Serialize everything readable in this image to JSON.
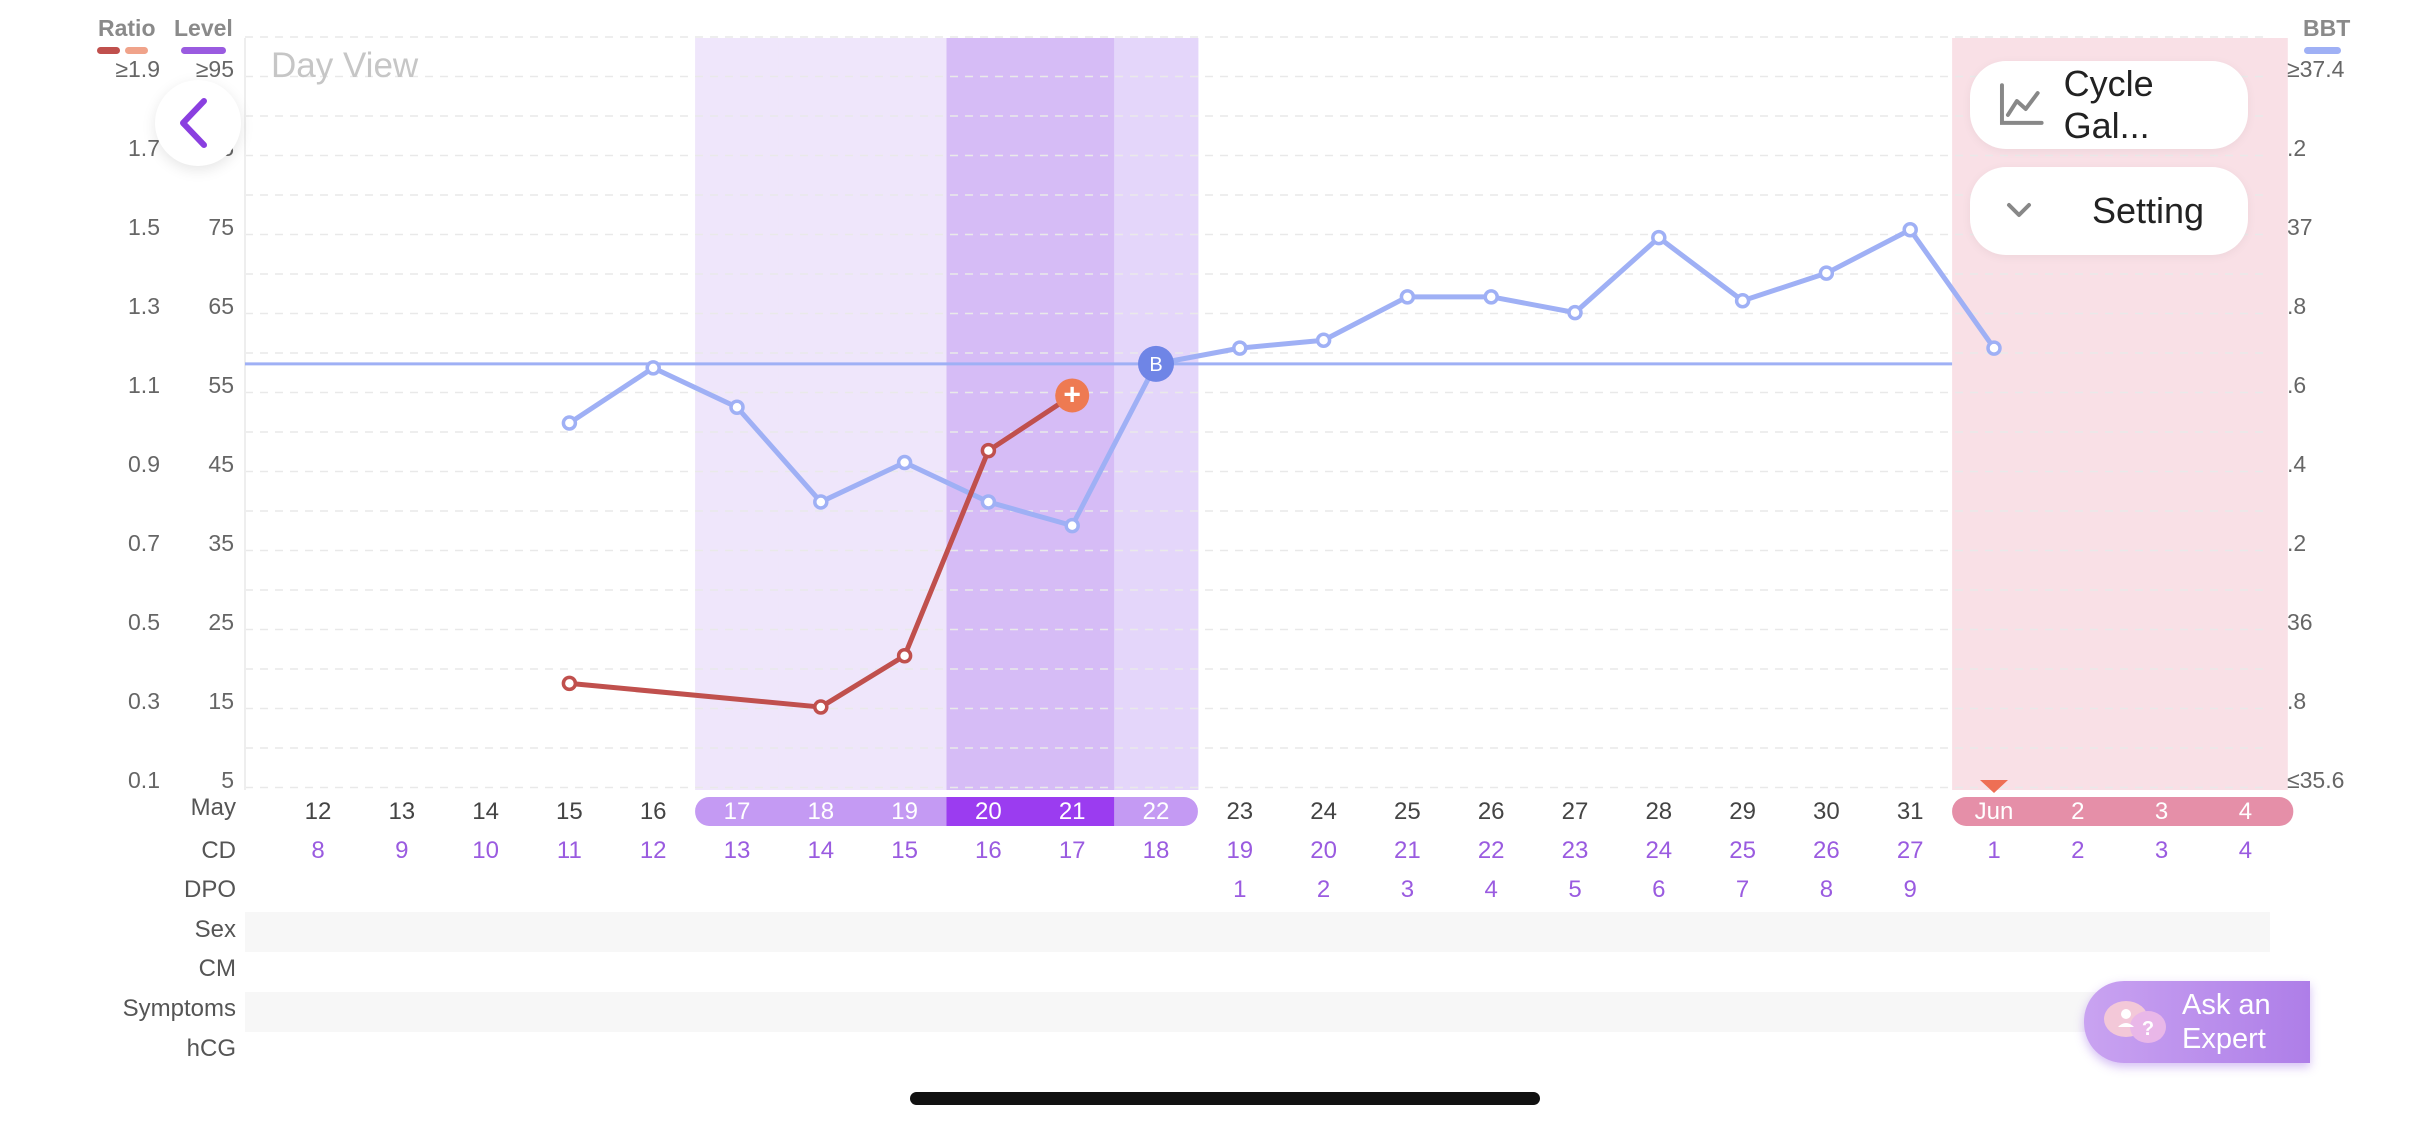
{
  "header": {
    "title": "Day View",
    "legend_left": [
      {
        "label": "Ratio",
        "colors": [
          "#c0504d",
          "#f0a38a"
        ]
      },
      {
        "label": "Level",
        "colors": [
          "#9a5be0"
        ]
      }
    ],
    "legend_right": {
      "label": "BBT",
      "color": "#9fb0f5"
    }
  },
  "buttons": {
    "cycle_gallery": "Cycle Gal...",
    "setting": "Setting",
    "ask_expert_line1": "Ask an",
    "ask_expert_line2": "Expert"
  },
  "axes": {
    "ratio": [
      "≥1.9",
      "1.7",
      "1.5",
      "1.3",
      "1.1",
      "0.9",
      "0.7",
      "0.5",
      "0.3",
      "0.1"
    ],
    "level": [
      "≥95",
      "85",
      "75",
      "65",
      "55",
      "45",
      "35",
      "25",
      "15",
      "5"
    ],
    "bbt": [
      "≥37.4",
      ".2",
      "37",
      ".8",
      ".6",
      ".4",
      ".2",
      "36",
      ".8",
      "≤35.6"
    ]
  },
  "rows": {
    "month_label": "May",
    "cd_label": "CD",
    "dpo_label": "DPO",
    "sex_label": "Sex",
    "cm_label": "CM",
    "symptoms_label": "Symptoms",
    "hcg_label": "hCG"
  },
  "days": [
    {
      "date": "12",
      "cd": "8",
      "dpo": ""
    },
    {
      "date": "13",
      "cd": "9",
      "dpo": ""
    },
    {
      "date": "14",
      "cd": "10",
      "dpo": ""
    },
    {
      "date": "15",
      "cd": "11",
      "dpo": ""
    },
    {
      "date": "16",
      "cd": "12",
      "dpo": ""
    },
    {
      "date": "17",
      "cd": "13",
      "dpo": "",
      "fertile": "light"
    },
    {
      "date": "18",
      "cd": "14",
      "dpo": "",
      "fertile": "light"
    },
    {
      "date": "19",
      "cd": "15",
      "dpo": "",
      "fertile": "light"
    },
    {
      "date": "20",
      "cd": "16",
      "dpo": "",
      "fertile": "peak"
    },
    {
      "date": "21",
      "cd": "17",
      "dpo": "",
      "fertile": "peak"
    },
    {
      "date": "22",
      "cd": "18",
      "dpo": "",
      "fertile": "light"
    },
    {
      "date": "23",
      "cd": "19",
      "dpo": "1"
    },
    {
      "date": "24",
      "cd": "20",
      "dpo": "2"
    },
    {
      "date": "25",
      "cd": "21",
      "dpo": "3"
    },
    {
      "date": "26",
      "cd": "22",
      "dpo": "4"
    },
    {
      "date": "27",
      "cd": "23",
      "dpo": "5"
    },
    {
      "date": "28",
      "cd": "24",
      "dpo": "6"
    },
    {
      "date": "29",
      "cd": "25",
      "dpo": "7"
    },
    {
      "date": "30",
      "cd": "26",
      "dpo": "8"
    },
    {
      "date": "31",
      "cd": "27",
      "dpo": "9"
    },
    {
      "date": "Jun",
      "cd": "1",
      "dpo": "",
      "period": true
    },
    {
      "date": "2",
      "cd": "2",
      "dpo": "",
      "period": true
    },
    {
      "date": "3",
      "cd": "3",
      "dpo": "",
      "period": true
    },
    {
      "date": "4",
      "cd": "4",
      "dpo": "",
      "period": true
    }
  ],
  "chart_data": {
    "type": "line",
    "x": [
      "May 12",
      "May 13",
      "May 14",
      "May 15",
      "May 16",
      "May 17",
      "May 18",
      "May 19",
      "May 20",
      "May 21",
      "May 22",
      "May 23",
      "May 24",
      "May 25",
      "May 26",
      "May 27",
      "May 28",
      "May 29",
      "May 30",
      "May 31",
      "Jun 1",
      "Jun 2",
      "Jun 3",
      "Jun 4"
    ],
    "series": [
      {
        "name": "BBT",
        "color": "#9fb0f5",
        "axis": "bbt",
        "values": [
          null,
          null,
          null,
          36.51,
          36.65,
          36.55,
          36.31,
          36.41,
          36.31,
          36.25,
          36.66,
          36.7,
          36.72,
          36.83,
          36.83,
          36.79,
          36.98,
          36.82,
          36.89,
          37.0,
          36.7,
          null,
          null,
          null
        ]
      },
      {
        "name": "Ratio",
        "color": "#c0504d",
        "axis": "ratio",
        "values": [
          null,
          null,
          null,
          0.35,
          null,
          null,
          0.29,
          0.42,
          0.94,
          1.08,
          null,
          null,
          null,
          null,
          null,
          null,
          null,
          null,
          null,
          null,
          null,
          null,
          null,
          null
        ]
      }
    ],
    "coverline": 36.66,
    "markers": [
      {
        "day": "May 22",
        "label": "B"
      },
      {
        "day": "May 21",
        "label": "+"
      }
    ],
    "ylim_bbt": [
      35.6,
      37.4
    ],
    "ylim_ratio": [
      0.1,
      1.9
    ],
    "grid": true
  }
}
